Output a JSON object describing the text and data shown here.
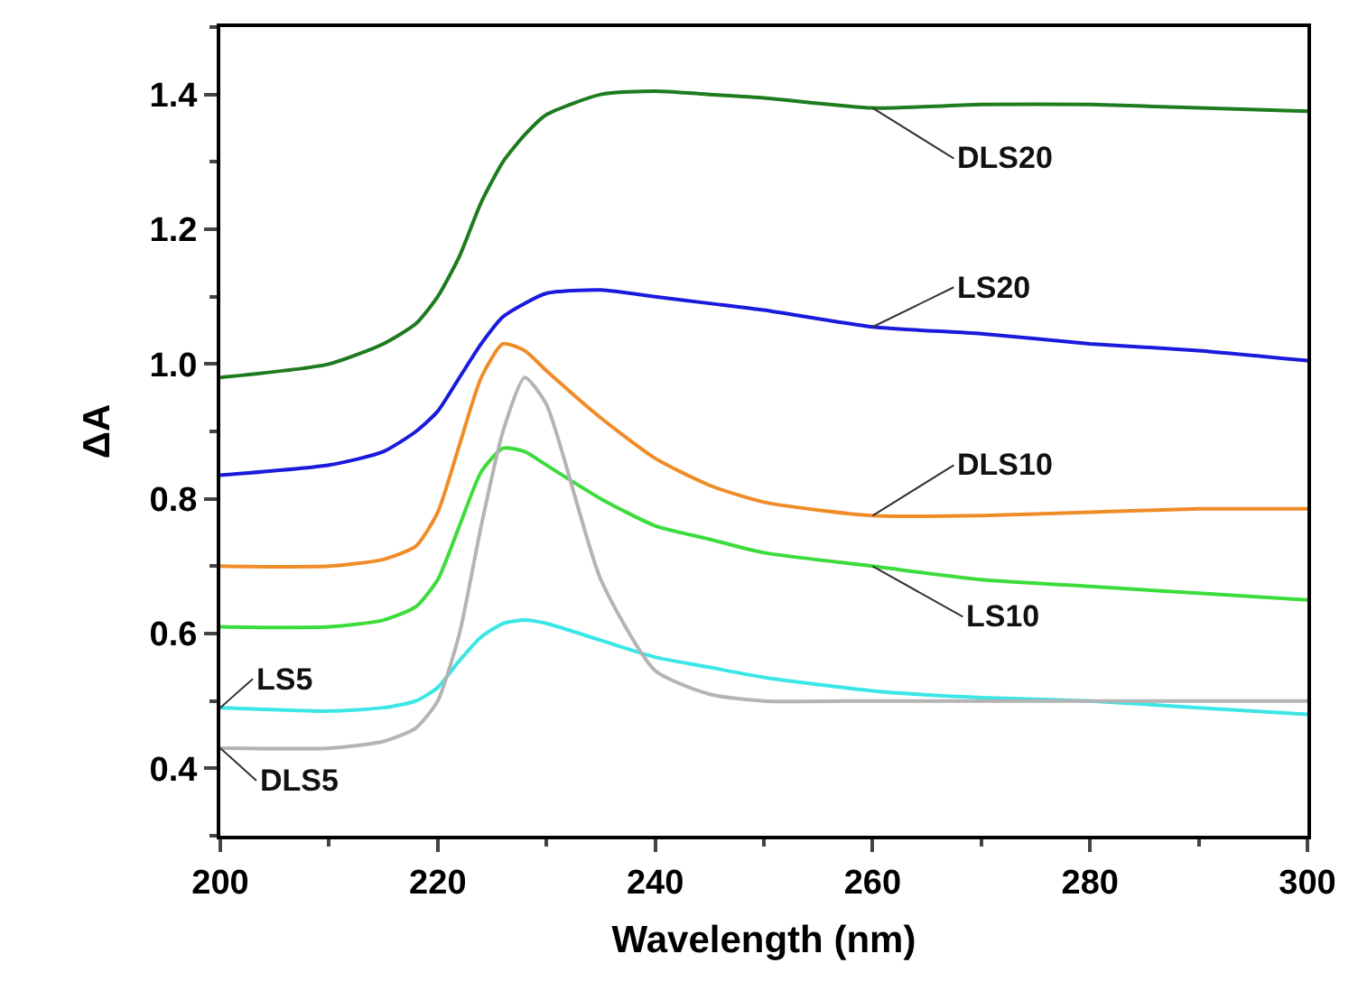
{
  "chart_data": {
    "type": "line",
    "xlabel": "Wavelength (nm)",
    "ylabel": "ΔA",
    "x": [
      200,
      210,
      215,
      218,
      220,
      222,
      224,
      226,
      228,
      230,
      235,
      240,
      245,
      250,
      260,
      270,
      280,
      290,
      300
    ],
    "xlim": [
      200,
      300
    ],
    "xticks": [
      200,
      220,
      240,
      260,
      280,
      300
    ],
    "ylim": [
      0.3,
      1.5
    ],
    "yticks": [
      0.4,
      0.6,
      0.8,
      {
        "value": 1.0,
        "label": "1.0"
      },
      1.2,
      1.4
    ],
    "marker": "none",
    "line_style": "solid",
    "series": [
      {
        "name": "DLS20",
        "color": "#1e7b1e",
        "values": [
          0.98,
          1.0,
          1.03,
          1.06,
          1.1,
          1.16,
          1.24,
          1.3,
          1.34,
          1.37,
          1.4,
          1.405,
          1.4,
          1.395,
          1.38,
          1.385,
          1.385,
          1.38,
          1.375
        ]
      },
      {
        "name": "LS20",
        "color": "#1a1adc",
        "values": [
          0.835,
          0.85,
          0.87,
          0.9,
          0.93,
          0.98,
          1.03,
          1.07,
          1.09,
          1.105,
          1.11,
          1.1,
          1.09,
          1.08,
          1.055,
          1.045,
          1.03,
          1.02,
          1.005
        ]
      },
      {
        "name": "DLS10",
        "color": "#f08c28",
        "values": [
          0.7,
          0.7,
          0.71,
          0.73,
          0.78,
          0.88,
          0.98,
          1.03,
          1.02,
          0.99,
          0.92,
          0.86,
          0.82,
          0.795,
          0.775,
          0.775,
          0.78,
          0.785,
          0.785
        ]
      },
      {
        "name": "LS10",
        "color": "#3cdc3c",
        "values": [
          0.61,
          0.61,
          0.62,
          0.64,
          0.68,
          0.76,
          0.84,
          0.875,
          0.87,
          0.85,
          0.8,
          0.76,
          0.74,
          0.72,
          0.7,
          0.68,
          0.67,
          0.66,
          0.65
        ]
      },
      {
        "name": "LS5",
        "color": "#3ce6e6",
        "values": [
          0.49,
          0.485,
          0.49,
          0.5,
          0.52,
          0.56,
          0.595,
          0.615,
          0.62,
          0.615,
          0.59,
          0.565,
          0.55,
          0.535,
          0.515,
          0.505,
          0.5,
          0.49,
          0.48
        ]
      },
      {
        "name": "DLS5",
        "color": "#b4b4b4",
        "values": [
          0.43,
          0.43,
          0.44,
          0.46,
          0.5,
          0.6,
          0.76,
          0.9,
          0.98,
          0.94,
          0.68,
          0.545,
          0.51,
          0.5,
          0.5,
          0.5,
          0.5,
          0.5,
          0.5
        ]
      }
    ]
  }
}
